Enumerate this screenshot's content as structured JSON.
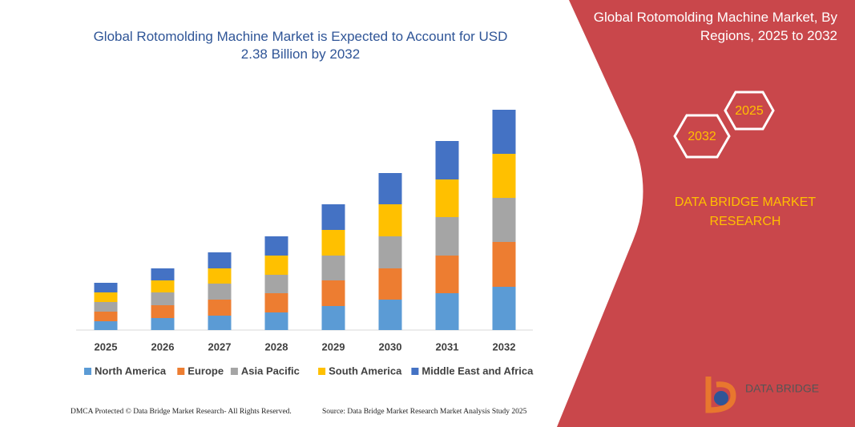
{
  "chart_data": {
    "type": "bar",
    "stacked": true,
    "title": "Global Rotomolding Machine Market is Expected to Account for USD 2.38 Billion by 2032",
    "categories": [
      "2025",
      "2026",
      "2027",
      "2028",
      "2029",
      "2030",
      "2031",
      "2032"
    ],
    "series": [
      {
        "name": "North America",
        "color": "#5b9bd5",
        "values": [
          11,
          15,
          18,
          22,
          30,
          38,
          46,
          54
        ]
      },
      {
        "name": "Europe",
        "color": "#ed7d31",
        "values": [
          12,
          16,
          20,
          24,
          32,
          39,
          47,
          56
        ]
      },
      {
        "name": "Asia Pacific",
        "color": "#a5a5a5",
        "values": [
          12,
          16,
          20,
          23,
          31,
          40,
          48,
          55
        ]
      },
      {
        "name": "South America",
        "color": "#ffc000",
        "values": [
          12,
          15,
          19,
          24,
          32,
          40,
          47,
          55
        ]
      },
      {
        "name": "Middle East and Africa",
        "color": "#4472c4",
        "values": [
          12,
          15,
          20,
          24,
          32,
          39,
          48,
          55
        ]
      }
    ],
    "legend": "bottom"
  },
  "panel": {
    "title": "Global Rotomolding Machine Market, By Regions, 2025 to 2032",
    "hex_start": "2025",
    "hex_end": "2032",
    "brand": "DATA BRIDGE MARKET RESEARCH",
    "logo": "DATA BRIDGE"
  },
  "footer": {
    "left": "DMCA Protected © Data Bridge Market Research- All Rights Reserved.",
    "right": "Source: Data Bridge Market Research Market Analysis Study 2025"
  }
}
